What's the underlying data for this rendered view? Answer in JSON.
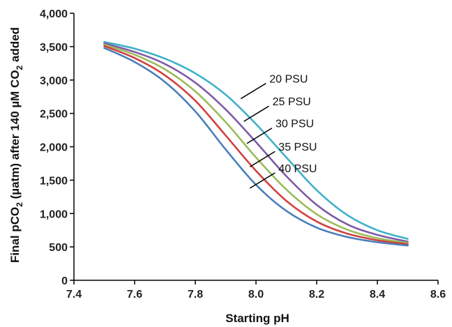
{
  "chart_data": {
    "type": "line",
    "title": "",
    "xlabel": "Starting pH",
    "ylabel": {
      "part1": "Final pCO",
      "sub1": "2",
      "part2": " (µatm) after 140 µM CO",
      "sub2": "2",
      "part3": " added"
    },
    "xlim": [
      7.4,
      8.6
    ],
    "ylim": [
      0,
      4000
    ],
    "x_ticks": [
      "7.4",
      "7.6",
      "7.8",
      "8.0",
      "8.2",
      "8.4",
      "8.6"
    ],
    "y_ticks": [
      "0",
      "500",
      "1,000",
      "1,500",
      "2,000",
      "2,500",
      "3,000",
      "3,500",
      "4,000"
    ],
    "grid": false,
    "legend": "annotations",
    "x": [
      7.5,
      7.6,
      7.7,
      7.8,
      7.9,
      8.0,
      8.1,
      8.2,
      8.3,
      8.4,
      8.5
    ],
    "series": [
      {
        "name": "20 PSU",
        "color": "#3fb0c9",
        "values": [
          3570,
          3470,
          3320,
          3100,
          2780,
          2340,
          1840,
          1350,
          980,
          750,
          620
        ]
      },
      {
        "name": "25 PSU",
        "color": "#7e5aa6",
        "values": [
          3550,
          3420,
          3240,
          2960,
          2560,
          2070,
          1560,
          1130,
          840,
          680,
          580
        ]
      },
      {
        "name": "30 PSU",
        "color": "#9bbb59",
        "values": [
          3530,
          3380,
          3160,
          2830,
          2370,
          1840,
          1360,
          990,
          760,
          630,
          560
        ]
      },
      {
        "name": "35 PSU",
        "color": "#d0413e",
        "values": [
          3510,
          3330,
          3070,
          2690,
          2170,
          1640,
          1190,
          880,
          700,
          600,
          540
        ]
      },
      {
        "name": "40 PSU",
        "color": "#4a7ebb",
        "values": [
          3480,
          3270,
          2970,
          2530,
          1960,
          1430,
          1040,
          790,
          650,
          570,
          520
        ]
      }
    ],
    "annotations": [
      {
        "text": "20 PSU",
        "at_x": 7.95,
        "at_y": 2720
      },
      {
        "text": "25 PSU",
        "at_x": 7.96,
        "at_y": 2380
      },
      {
        "text": "30 PSU",
        "at_x": 7.97,
        "at_y": 2050
      },
      {
        "text": "35 PSU",
        "at_x": 7.98,
        "at_y": 1700
      },
      {
        "text": "40 PSU",
        "at_x": 7.98,
        "at_y": 1380
      }
    ]
  }
}
